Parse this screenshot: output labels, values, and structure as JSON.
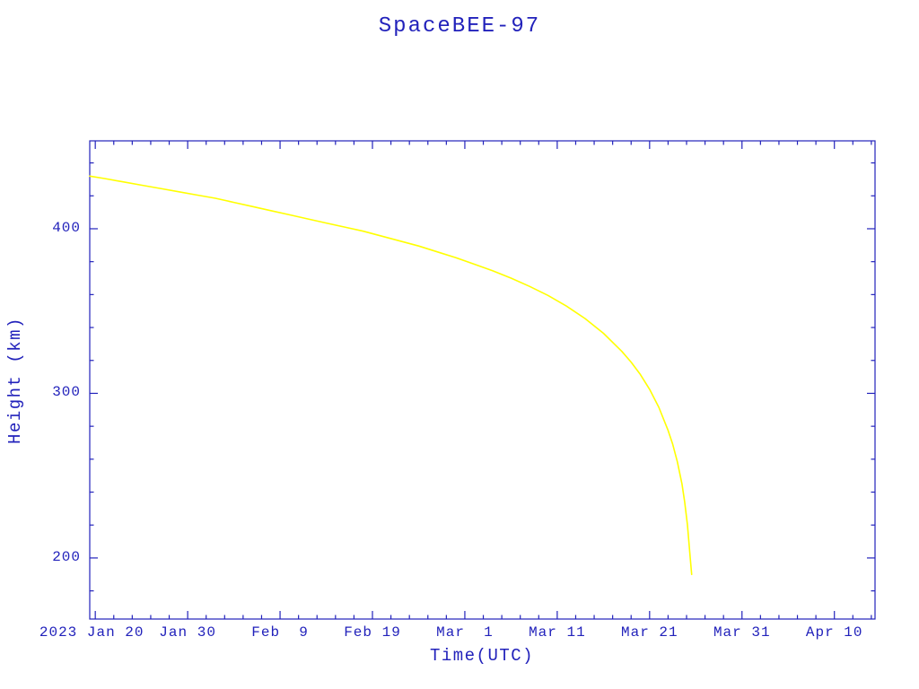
{
  "colors": {
    "axis": "#2222bb",
    "text": "#2222bb",
    "curve": "#ffff00",
    "background": "#ffffff"
  },
  "chart_data": {
    "type": "line",
    "title": "SpaceBEE-97",
    "xlabel": "Time(UTC)",
    "ylabel": "Height (km)",
    "grid": false,
    "legend": "none",
    "x_unit": "days since 2023 Jan 17",
    "xlim": [
      2.4,
      87.4
    ],
    "ylim": [
      162.9,
      453.4
    ],
    "x_ticks": [
      {
        "day": 3,
        "label": "2023 Jan 20"
      },
      {
        "day": 13,
        "label": "Jan 30"
      },
      {
        "day": 23,
        "label": "Feb  9"
      },
      {
        "day": 33,
        "label": "Feb 19"
      },
      {
        "day": 43,
        "label": "Mar  1"
      },
      {
        "day": 53,
        "label": "Mar 11"
      },
      {
        "day": 63,
        "label": "Mar 21"
      },
      {
        "day": 73,
        "label": "Mar 31"
      },
      {
        "day": 83,
        "label": "Apr 10"
      }
    ],
    "y_ticks": [
      {
        "value": 200,
        "label": "200"
      },
      {
        "value": 300,
        "label": "300"
      },
      {
        "value": 400,
        "label": "400"
      }
    ],
    "x_minor_step": 2,
    "y_minor_step": 20,
    "series": [
      {
        "name": "SpaceBEE-97 orbital height",
        "x": [
          2.4,
          4,
          6,
          8,
          10,
          12,
          14,
          16,
          18,
          20,
          22,
          24,
          26,
          28,
          30,
          32,
          34,
          36,
          38,
          40,
          42,
          44,
          46,
          48,
          50,
          52,
          54,
          56,
          58,
          60,
          61,
          62,
          63,
          64,
          65,
          65.5,
          66,
          66.5,
          66.8,
          67.1,
          67.4,
          67.55
        ],
        "y": [
          432,
          430.5,
          428.5,
          426.5,
          424.5,
          422.5,
          420.5,
          418.5,
          416,
          413.5,
          411,
          408.5,
          406,
          403.5,
          401,
          398.5,
          395.5,
          392.5,
          389.5,
          386,
          382.5,
          378.5,
          374.5,
          370,
          365,
          359.5,
          353,
          345.5,
          336.5,
          325.5,
          319,
          311.5,
          302.5,
          291.5,
          277.5,
          269,
          258.5,
          245,
          234,
          220,
          200,
          190
        ]
      }
    ]
  }
}
